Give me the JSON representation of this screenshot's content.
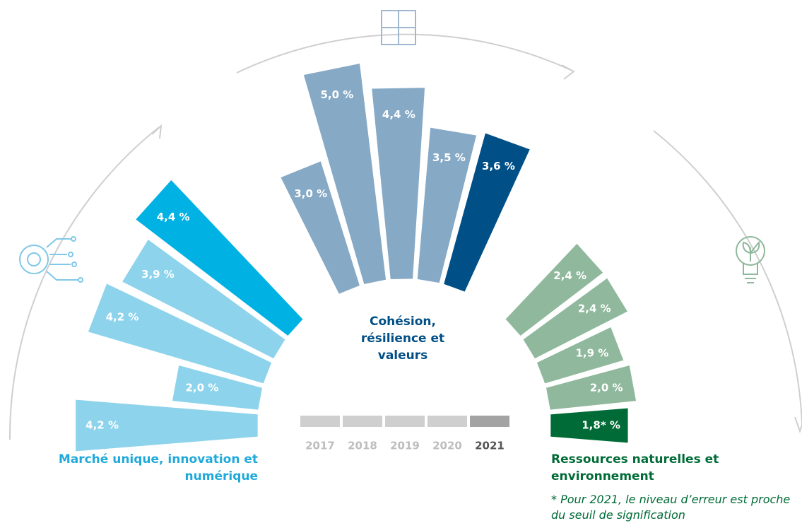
{
  "chart_data": {
    "type": "radial_bar",
    "categories": [
      "2017",
      "2018",
      "2019",
      "2020",
      "2021"
    ],
    "legend_colors": [
      "#cfcfcf",
      "#cfcfcf",
      "#cfcfcf",
      "#cfcfcf",
      "#a3a3a3"
    ],
    "series": [
      {
        "name": "Marché unique, innovation et numérique",
        "color": "#1fa9db",
        "colors": [
          "#8dd3ec",
          "#8dd3ec",
          "#8dd3ec",
          "#8dd3ec",
          "#00b2e3"
        ],
        "values": [
          4.2,
          2.0,
          4.2,
          3.9,
          4.4
        ],
        "value_labels": [
          "4,2 %",
          "2,0 %",
          "4,2 %",
          "3,9 %",
          "4,4 %"
        ]
      },
      {
        "name": "Cohésion, résilience et valeurs",
        "color": "#004f86",
        "colors": [
          "#86a9c6",
          "#86a9c6",
          "#86a9c6",
          "#86a9c6",
          "#004f86"
        ],
        "values": [
          3.0,
          5.0,
          4.4,
          3.5,
          3.6
        ],
        "value_labels": [
          "3,0 %",
          "5,0 %",
          "4,4 %",
          "3,5 %",
          "3,6 %"
        ]
      },
      {
        "name": "Ressources naturelles et environnement",
        "color": "#006b36",
        "colors": [
          "#8fb89c",
          "#8fb89c",
          "#8fb89c",
          "#8fb89c",
          "#006b36"
        ],
        "values": [
          2.4,
          2.4,
          1.9,
          2.0,
          1.8
        ],
        "value_labels": [
          "2,4 %",
          "2,4 %",
          "1,9 %",
          "2,0 %",
          "1,8* %"
        ]
      }
    ],
    "footnote": "* Pour 2021, le niveau d’erreur est proche du seuil de signification"
  }
}
